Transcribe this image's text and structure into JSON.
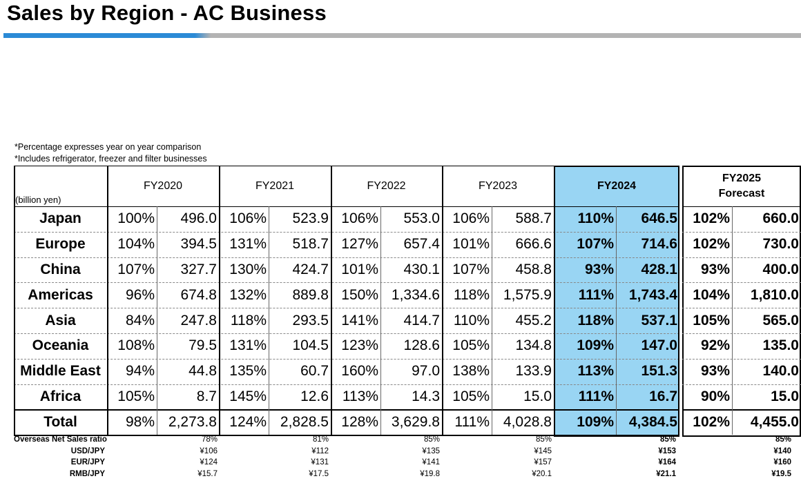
{
  "title": "Sales by Region - AC Business",
  "notes": [
    "*Percentage expresses year on year comparison",
    "*Includes refrigerator, freezer and filter businesses"
  ],
  "unit_label": "(billion yen)",
  "years": [
    {
      "label": "FY2020",
      "sub": ""
    },
    {
      "label": "FY2021",
      "sub": ""
    },
    {
      "label": "FY2022",
      "sub": ""
    },
    {
      "label": "FY2023",
      "sub": ""
    },
    {
      "label": "FY2024",
      "sub": ""
    },
    {
      "label": "FY2025",
      "sub": "Forecast"
    }
  ],
  "rows": [
    {
      "region": "Japan",
      "cells": [
        [
          "100%",
          "496.0"
        ],
        [
          "106%",
          "523.9"
        ],
        [
          "106%",
          "553.0"
        ],
        [
          "106%",
          "588.7"
        ],
        [
          "110%",
          "646.5"
        ],
        [
          "102%",
          "660.0"
        ]
      ]
    },
    {
      "region": "Europe",
      "cells": [
        [
          "104%",
          "394.5"
        ],
        [
          "131%",
          "518.7"
        ],
        [
          "127%",
          "657.4"
        ],
        [
          "101%",
          "666.6"
        ],
        [
          "107%",
          "714.6"
        ],
        [
          "102%",
          "730.0"
        ]
      ]
    },
    {
      "region": "China",
      "cells": [
        [
          "107%",
          "327.7"
        ],
        [
          "130%",
          "424.7"
        ],
        [
          "101%",
          "430.1"
        ],
        [
          "107%",
          "458.8"
        ],
        [
          "93%",
          "428.1"
        ],
        [
          "93%",
          "400.0"
        ]
      ]
    },
    {
      "region": "Americas",
      "cells": [
        [
          "96%",
          "674.8"
        ],
        [
          "132%",
          "889.8"
        ],
        [
          "150%",
          "1,334.6"
        ],
        [
          "118%",
          "1,575.9"
        ],
        [
          "111%",
          "1,743.4"
        ],
        [
          "104%",
          "1,810.0"
        ]
      ]
    },
    {
      "region": "Asia",
      "cells": [
        [
          "84%",
          "247.8"
        ],
        [
          "118%",
          "293.5"
        ],
        [
          "141%",
          "414.7"
        ],
        [
          "110%",
          "455.2"
        ],
        [
          "118%",
          "537.1"
        ],
        [
          "105%",
          "565.0"
        ]
      ]
    },
    {
      "region": "Oceania",
      "cells": [
        [
          "108%",
          "79.5"
        ],
        [
          "131%",
          "104.5"
        ],
        [
          "123%",
          "128.6"
        ],
        [
          "105%",
          "134.8"
        ],
        [
          "109%",
          "147.0"
        ],
        [
          "92%",
          "135.0"
        ]
      ]
    },
    {
      "region": "Middle East",
      "cells": [
        [
          "94%",
          "44.8"
        ],
        [
          "135%",
          "60.7"
        ],
        [
          "160%",
          "97.0"
        ],
        [
          "138%",
          "133.9"
        ],
        [
          "113%",
          "151.3"
        ],
        [
          "93%",
          "140.0"
        ]
      ]
    },
    {
      "region": "Africa",
      "cells": [
        [
          "105%",
          "8.7"
        ],
        [
          "145%",
          "12.6"
        ],
        [
          "113%",
          "14.3"
        ],
        [
          "105%",
          "15.0"
        ],
        [
          "111%",
          "16.7"
        ],
        [
          "90%",
          "15.0"
        ]
      ]
    },
    {
      "region": "Total",
      "cells": [
        [
          "98%",
          "2,273.8"
        ],
        [
          "124%",
          "2,828.5"
        ],
        [
          "128%",
          "3,629.8"
        ],
        [
          "111%",
          "4,028.8"
        ],
        [
          "109%",
          "4,384.5"
        ],
        [
          "102%",
          "4,455.0"
        ]
      ]
    }
  ],
  "footer": [
    {
      "label": "Overseas Net Sales ratio",
      "values": [
        "78%",
        "81%",
        "85%",
        "85%",
        "85%",
        "85%"
      ]
    },
    {
      "label": "USD/JPY",
      "values": [
        "¥106",
        "¥112",
        "¥135",
        "¥145",
        "¥153",
        "¥140"
      ]
    },
    {
      "label": "EUR/JPY",
      "values": [
        "¥124",
        "¥131",
        "¥141",
        "¥157",
        "¥164",
        "¥160"
      ]
    },
    {
      "label": "RMB/JPY",
      "values": [
        "¥15.7",
        "¥17.5",
        "¥19.8",
        "¥20.1",
        "¥21.1",
        "¥19.5"
      ]
    }
  ]
}
